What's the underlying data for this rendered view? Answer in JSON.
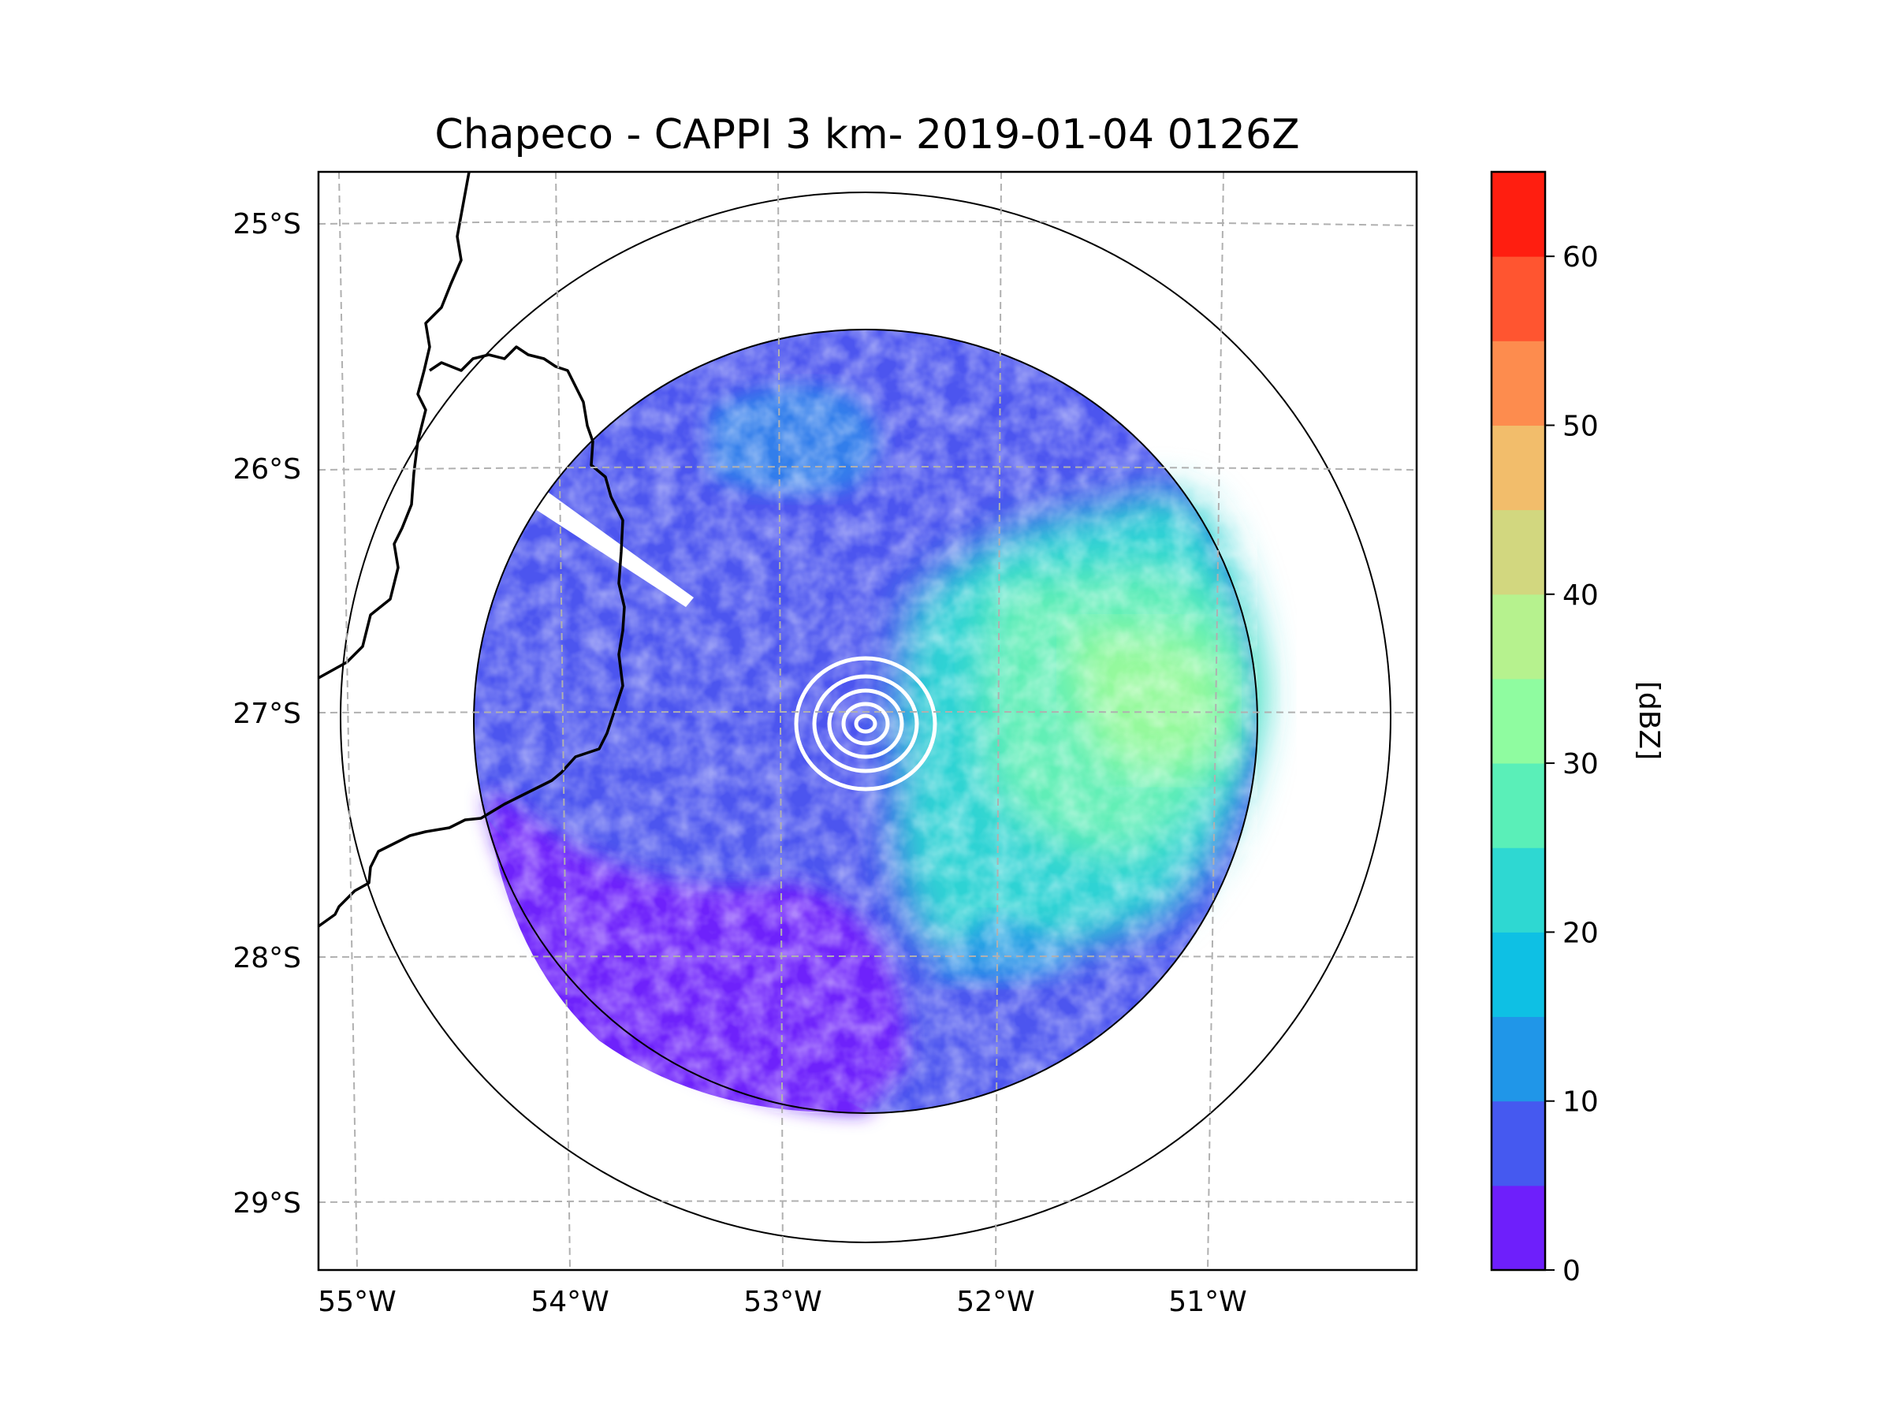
{
  "title": "Chapeco - CAPPI 3 km- 2019-01-04 0126Z",
  "map": {
    "lat_ticks": [
      {
        "value": -25,
        "label": "25°S"
      },
      {
        "value": -26,
        "label": "26°S"
      },
      {
        "value": -27,
        "label": "27°S"
      },
      {
        "value": -28,
        "label": "28°S"
      },
      {
        "value": -29,
        "label": "29°S"
      }
    ],
    "lon_ticks": [
      {
        "value": -55,
        "label": "55°W"
      },
      {
        "value": -54,
        "label": "54°W"
      },
      {
        "value": -53,
        "label": "53°W"
      },
      {
        "value": -52,
        "label": "52°W"
      },
      {
        "value": -51,
        "label": "51°W"
      }
    ],
    "radar_center": {
      "lon": -52.6,
      "lat": -27.0
    },
    "gridlines": "dashed gray"
  },
  "colorbar": {
    "label": "[dBZ]",
    "min": 0,
    "max": 65,
    "step": 5,
    "ticks": [
      {
        "value": 0,
        "label": "0"
      },
      {
        "value": 10,
        "label": "10"
      },
      {
        "value": 20,
        "label": "20"
      },
      {
        "value": 30,
        "label": "30"
      },
      {
        "value": 40,
        "label": "40"
      },
      {
        "value": 50,
        "label": "50"
      },
      {
        "value": 60,
        "label": "60"
      }
    ],
    "colors": [
      "#6e1ffb",
      "#4559f0",
      "#2096e8",
      "#0ec0e4",
      "#2ed8d2",
      "#5aefb8",
      "#8ffca0",
      "#b6f28e",
      "#d2d77f",
      "#f2bd6b",
      "#fd8c4e",
      "#ff5530",
      "#ff1e10"
    ]
  }
}
